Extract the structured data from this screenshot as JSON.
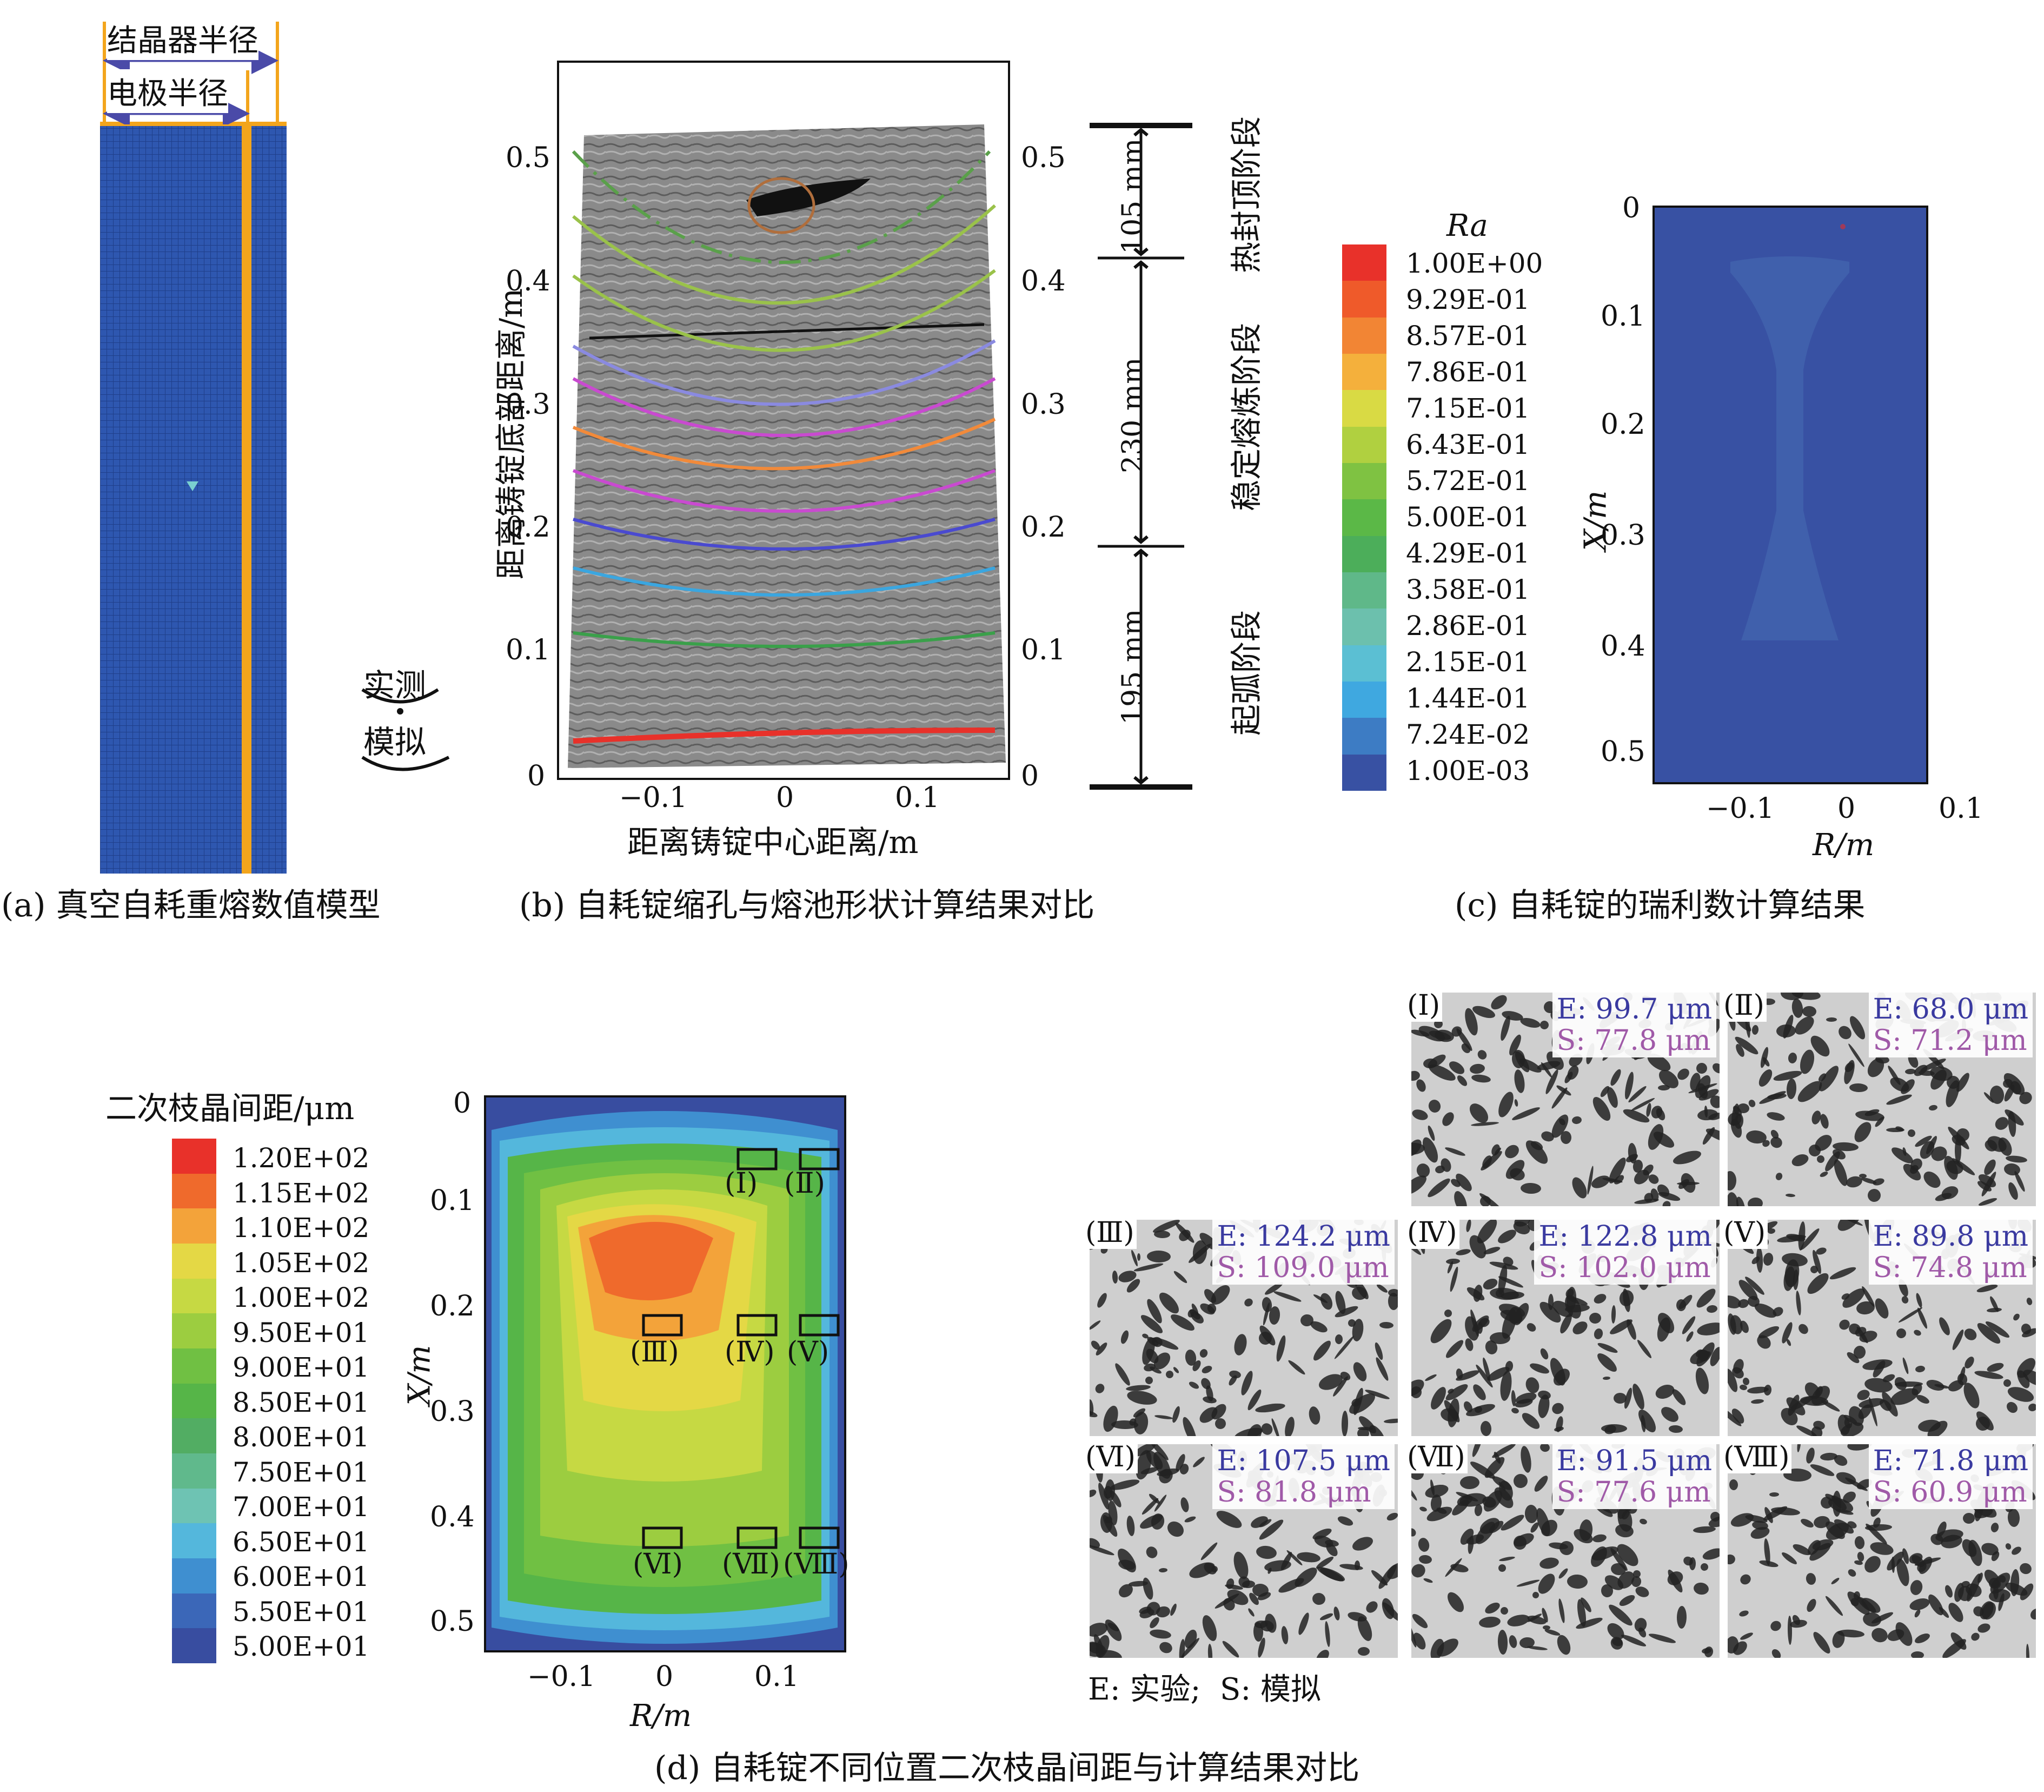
{
  "panel_a": {
    "caption": "(a) 真空自耗重熔数值模型",
    "label_crystallizer": "结晶器半径",
    "label_electrode": "电极半径",
    "colors": {
      "mesh": "#2b4fa8",
      "electrode": "#f3a51c"
    }
  },
  "panel_b": {
    "caption": "(b) 自耗锭缩孔与熔池形状计算结果对比",
    "ylabel": "距离铸锭底部距离/m",
    "xlabel": "距离铸锭中心距离/m",
    "legend_measured": "实测",
    "legend_simulated": "模拟",
    "yticks": [
      "0",
      "0.1",
      "0.2",
      "0.3",
      "0.4",
      "0.5"
    ],
    "xticks": [
      "−0.1",
      "0",
      "0.1"
    ],
    "stages": [
      {
        "length": "105 mm",
        "name": "热封顶阶段"
      },
      {
        "length": "230 mm",
        "name": "稳定熔炼阶段"
      },
      {
        "length": "195 mm",
        "name": "起弧阶段"
      }
    ]
  },
  "panel_c": {
    "caption": "(c) 自耗锭的瑞利数计算结果",
    "legend_title": "Ra",
    "legend": [
      "1.00E+00",
      "9.29E-01",
      "8.57E-01",
      "7.86E-01",
      "7.15E-01",
      "6.43E-01",
      "5.72E-01",
      "5.00E-01",
      "4.29E-01",
      "3.58E-01",
      "2.86E-01",
      "2.15E-01",
      "1.44E-01",
      "7.24E-02",
      "1.00E-03"
    ],
    "legend_colors": [
      "#e8312a",
      "#ef5a2a",
      "#f28534",
      "#f4b03c",
      "#d9da44",
      "#b0d040",
      "#7fc242",
      "#5bb847",
      "#4cae5a",
      "#5fb889",
      "#6cc0ad",
      "#5bbfd3",
      "#3fa8e0",
      "#3d7cc4",
      "#3851a3"
    ],
    "ylabel": "X/m",
    "xlabel": "R/m",
    "yticks": [
      "0",
      "0.1",
      "0.2",
      "0.3",
      "0.4",
      "0.5"
    ],
    "xticks": [
      "−0.1",
      "0",
      "0.1"
    ]
  },
  "panel_d": {
    "caption": "(d) 自耗锭不同位置二次枝晶间距与计算结果对比",
    "legend_title": "二次枝晶间距/μm",
    "legend": [
      "1.20E+02",
      "1.15E+02",
      "1.10E+02",
      "1.05E+02",
      "1.00E+02",
      "9.50E+01",
      "9.00E+01",
      "8.50E+01",
      "8.00E+01",
      "7.50E+01",
      "7.00E+01",
      "6.50E+01",
      "6.00E+01",
      "5.50E+01",
      "5.00E+01"
    ],
    "legend_colors": [
      "#e8312a",
      "#ef6a2c",
      "#f3a33a",
      "#e4d845",
      "#c6d943",
      "#9ccd40",
      "#70c043",
      "#56b548",
      "#52ad63",
      "#60b98c",
      "#6ec3b3",
      "#54b7dc",
      "#3f8fd0",
      "#3b67b8",
      "#384da0"
    ],
    "ylabel": "X/m",
    "xlabel": "R/m",
    "yticks": [
      "0",
      "0.1",
      "0.2",
      "0.3",
      "0.4",
      "0.5"
    ],
    "xticks": [
      "−0.1",
      "0",
      "0.1"
    ],
    "regions": [
      "(Ⅰ)",
      "(Ⅱ)",
      "(Ⅲ)",
      "(Ⅳ)",
      "(Ⅴ)",
      "(Ⅵ)",
      "(Ⅶ)",
      "(Ⅷ)"
    ],
    "footnote": "E: 实验;  S: 模拟",
    "micrographs": [
      {
        "id": "(Ⅰ)",
        "e": "E: 99.7 μm",
        "s": "S: 77.8 μm"
      },
      {
        "id": "(Ⅱ)",
        "e": "E: 68.0 μm",
        "s": "S: 71.2 μm"
      },
      {
        "id": "(Ⅲ)",
        "e": "E: 124.2 μm",
        "s": "S: 109.0 μm"
      },
      {
        "id": "(Ⅳ)",
        "e": "E: 122.8 μm",
        "s": "S: 102.0 μm"
      },
      {
        "id": "(Ⅴ)",
        "e": "E: 89.8 μm",
        "s": "S: 74.8 μm"
      },
      {
        "id": "(Ⅵ)",
        "e": "E: 107.5 μm",
        "s": "S: 81.8 μm"
      },
      {
        "id": "(Ⅶ)",
        "e": "E: 91.5 μm",
        "s": "S: 77.6 μm"
      },
      {
        "id": "(Ⅷ)",
        "e": "E: 71.8 μm",
        "s": "S: 60.9 μm"
      }
    ]
  }
}
